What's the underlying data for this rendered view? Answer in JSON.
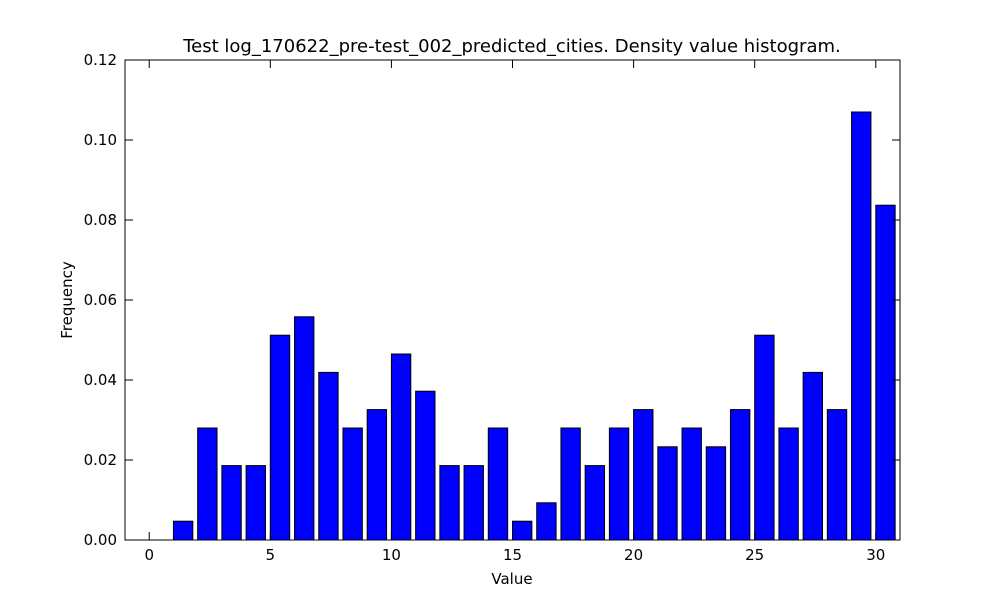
{
  "chart_data": {
    "type": "bar",
    "title": "Test log_170622_pre-test_002_predicted_cities. Density value histogram.",
    "xlabel": "Value",
    "ylabel": "Frequency",
    "xlim": [
      -1,
      31
    ],
    "ylim": [
      0,
      0.12
    ],
    "xticks": [
      "0",
      "5",
      "10",
      "15",
      "20",
      "25",
      "30"
    ],
    "yticks": [
      "0.00",
      "0.02",
      "0.04",
      "0.06",
      "0.08",
      "0.10",
      "0.12"
    ],
    "grid": false,
    "bar_color": "#0000ff",
    "edge_color": "#000000",
    "bar_width": 0.8,
    "x": [
      0,
      1,
      2,
      3,
      4,
      5,
      6,
      7,
      8,
      9,
      10,
      11,
      12,
      13,
      14,
      15,
      16,
      17,
      18,
      19,
      20,
      21,
      22,
      23,
      24,
      25,
      26,
      27,
      28,
      29,
      30
    ],
    "values": [
      0.0,
      0.0047,
      0.028,
      0.0186,
      0.0186,
      0.0512,
      0.0558,
      0.0419,
      0.028,
      0.0326,
      0.0465,
      0.0372,
      0.0186,
      0.0186,
      0.028,
      0.0047,
      0.0093,
      0.028,
      0.0186,
      0.028,
      0.0326,
      0.0233,
      0.028,
      0.0233,
      0.0326,
      0.0512,
      0.028,
      0.0419,
      0.0326,
      0.107,
      0.0837
    ]
  }
}
